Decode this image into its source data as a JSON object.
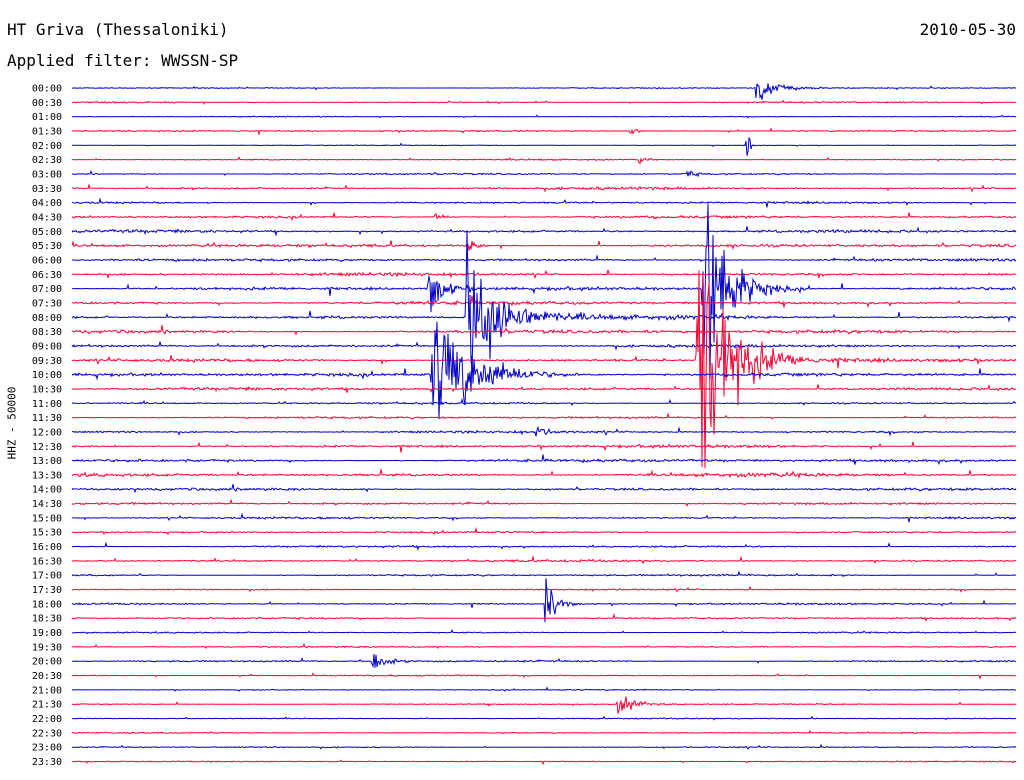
{
  "header": {
    "station": "HT Griva (Thessaloniki)",
    "date": "2010-05-30",
    "filter": "Applied filter: WWSSN-SP"
  },
  "chart_data": {
    "type": "line",
    "title": "HT Griva (Thessaloniki)",
    "subtitle": "Applied filter: WWSSN-SP",
    "ylabel": "HHZ - 50000",
    "date": "2010-05-30",
    "colors": {
      "even_traces": "#0000cc",
      "odd_traces": "#ff0033"
    },
    "trace_minutes": 30,
    "rows": [
      "00:00",
      "00:30",
      "01:00",
      "01:30",
      "02:00",
      "02:30",
      "03:00",
      "03:30",
      "04:00",
      "04:30",
      "05:00",
      "05:30",
      "06:00",
      "06:30",
      "07:00",
      "07:30",
      "08:00",
      "08:30",
      "09:00",
      "09:30",
      "10:00",
      "10:30",
      "11:00",
      "11:30",
      "12:00",
      "12:30",
      "13:00",
      "13:30",
      "14:00",
      "14:30",
      "15:00",
      "15:30",
      "16:00",
      "16:30",
      "17:00",
      "17:30",
      "18:00",
      "18:30",
      "19:00",
      "19:30",
      "20:00",
      "20:30",
      "21:00",
      "21:30",
      "22:00",
      "22:30",
      "23:00",
      "23:30"
    ],
    "noise_level": [
      0.5,
      0.6,
      0.4,
      0.6,
      0.4,
      0.6,
      0.7,
      1.1,
      0.9,
      1.1,
      1.3,
      1.4,
      1.2,
      1.4,
      1.5,
      1.6,
      1.7,
      1.6,
      1.3,
      1.3,
      1.5,
      1.3,
      0.9,
      1.0,
      1.1,
      1.3,
      1.4,
      1.5,
      1.2,
      1.0,
      0.9,
      0.8,
      0.9,
      1.0,
      0.9,
      0.7,
      0.8,
      0.8,
      0.6,
      0.6,
      0.8,
      0.6,
      0.5,
      0.5,
      0.5,
      0.5,
      0.6,
      0.5
    ],
    "events": [
      {
        "row": 0,
        "minute": 21.7,
        "amplitude": 14,
        "duration_min": 1.3
      },
      {
        "row": 3,
        "minute": 17.7,
        "amplitude": 9,
        "duration_min": 0.3
      },
      {
        "row": 4,
        "minute": 21.4,
        "amplitude": 34,
        "duration_min": 0.2
      },
      {
        "row": 5,
        "minute": 18.0,
        "amplitude": 6,
        "duration_min": 0.3
      },
      {
        "row": 6,
        "minute": 19.5,
        "amplitude": 6,
        "duration_min": 0.5
      },
      {
        "row": 9,
        "minute": 11.5,
        "amplitude": 6,
        "duration_min": 0.5
      },
      {
        "row": 11,
        "minute": 12.5,
        "amplitude": 14,
        "duration_min": 0.4
      },
      {
        "row": 14,
        "minute": 11.3,
        "amplitude": 28,
        "duration_min": 0.8
      },
      {
        "row": 14,
        "minute": 20.0,
        "amplitude": 110,
        "duration_min": 1.5
      },
      {
        "row": 16,
        "minute": 12.5,
        "amplitude": 90,
        "duration_min": 1.8
      },
      {
        "row": 19,
        "minute": 19.8,
        "amplitude": 130,
        "duration_min": 2.0
      },
      {
        "row": 20,
        "minute": 11.4,
        "amplitude": 60,
        "duration_min": 2.5
      },
      {
        "row": 24,
        "minute": 14.7,
        "amplitude": 8,
        "duration_min": 0.5
      },
      {
        "row": 36,
        "minute": 15.0,
        "amplitude": 36,
        "duration_min": 0.6
      },
      {
        "row": 40,
        "minute": 9.5,
        "amplitude": 12,
        "duration_min": 0.7
      },
      {
        "row": 43,
        "minute": 17.3,
        "amplitude": 11,
        "duration_min": 1.0
      }
    ]
  }
}
